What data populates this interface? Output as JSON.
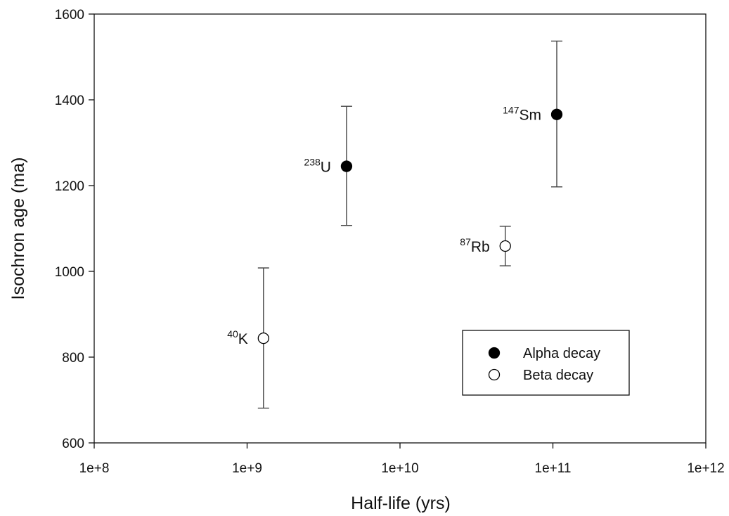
{
  "chart_data": {
    "type": "scatter",
    "title": "",
    "xlabel": "Half-life (yrs)",
    "ylabel": "Isochron age (ma)",
    "x_scale": "log",
    "xlim": [
      100000000,
      1000000000000
    ],
    "ylim": [
      600,
      1600
    ],
    "x_ticks": [
      {
        "value": 100000000,
        "label": "1e+8"
      },
      {
        "value": 1000000000,
        "label": "1e+9"
      },
      {
        "value": 10000000000,
        "label": "1e+10"
      },
      {
        "value": 100000000000,
        "label": "1e+11"
      },
      {
        "value": 1000000000000,
        "label": "1e+12"
      }
    ],
    "y_ticks": [
      {
        "value": 600,
        "label": "600"
      },
      {
        "value": 800,
        "label": "800"
      },
      {
        "value": 1000,
        "label": "1000"
      },
      {
        "value": 1200,
        "label": "1200"
      },
      {
        "value": 1400,
        "label": "1400"
      },
      {
        "value": 1600,
        "label": "1600"
      }
    ],
    "grid": false,
    "legend_position": "bottom-right",
    "series": [
      {
        "name": "Alpha decay",
        "marker": "filled-circle",
        "points": [
          {
            "sup": "238",
            "base": "U",
            "x": 4470000000,
            "y": 1245,
            "y_low": 1107,
            "y_high": 1385,
            "label_side": "left"
          },
          {
            "sup": "147",
            "base": "Sm",
            "x": 106000000000,
            "y": 1366,
            "y_low": 1197,
            "y_high": 1537,
            "label_side": "left"
          }
        ]
      },
      {
        "name": "Beta decay",
        "marker": "open-circle",
        "points": [
          {
            "sup": "40",
            "base": "K",
            "x": 1280000000,
            "y": 844,
            "y_low": 681,
            "y_high": 1008,
            "label_side": "left"
          },
          {
            "sup": "87",
            "base": "Rb",
            "x": 48800000000,
            "y": 1059,
            "y_low": 1013,
            "y_high": 1105,
            "label_side": "left"
          }
        ]
      }
    ],
    "colors": {
      "axis": "#111111",
      "errorbar": "#444444",
      "marker_fill_alpha": "#000000",
      "marker_fill_beta": "#ffffff"
    }
  }
}
